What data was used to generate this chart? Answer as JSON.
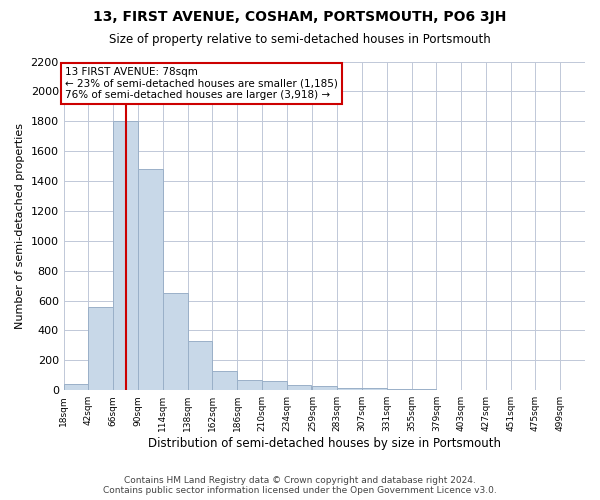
{
  "title": "13, FIRST AVENUE, COSHAM, PORTSMOUTH, PO6 3JH",
  "subtitle": "Size of property relative to semi-detached houses in Portsmouth",
  "xlabel": "Distribution of semi-detached houses by size in Portsmouth",
  "ylabel": "Number of semi-detached properties",
  "footer_line1": "Contains HM Land Registry data © Crown copyright and database right 2024.",
  "footer_line2": "Contains public sector information licensed under the Open Government Licence v3.0.",
  "property_size": 78,
  "annotation_title": "13 FIRST AVENUE: 78sqm",
  "annotation_line1": "← 23% of semi-detached houses are smaller (1,185)",
  "annotation_line2": "76% of semi-detached houses are larger (3,918) →",
  "bar_color": "#c8d8e8",
  "bar_edge_color": "#9ab0c8",
  "highlight_line_color": "#cc0000",
  "annotation_box_color": "#ffffff",
  "annotation_box_edge": "#cc0000",
  "background_color": "#ffffff",
  "grid_color": "#c0c8d8",
  "bin_edges": [
    18,
    42,
    66,
    90,
    114,
    138,
    162,
    186,
    210,
    234,
    259,
    283,
    307,
    331,
    355,
    379,
    403,
    427,
    451,
    475,
    499
  ],
  "bin_labels": [
    "18sqm",
    "42sqm",
    "66sqm",
    "90sqm",
    "114sqm",
    "138sqm",
    "162sqm",
    "186sqm",
    "210sqm",
    "234sqm",
    "259sqm",
    "283sqm",
    "307sqm",
    "331sqm",
    "355sqm",
    "379sqm",
    "403sqm",
    "427sqm",
    "451sqm",
    "475sqm",
    "499sqm"
  ],
  "counts": [
    40,
    560,
    1800,
    1480,
    650,
    330,
    130,
    70,
    60,
    35,
    25,
    18,
    12,
    8,
    5,
    3,
    2,
    1,
    1,
    0
  ],
  "ylim": [
    0,
    2200
  ],
  "yticks": [
    0,
    200,
    400,
    600,
    800,
    1000,
    1200,
    1400,
    1600,
    1800,
    2000,
    2200
  ],
  "figsize": [
    6.0,
    5.0
  ],
  "dpi": 100
}
